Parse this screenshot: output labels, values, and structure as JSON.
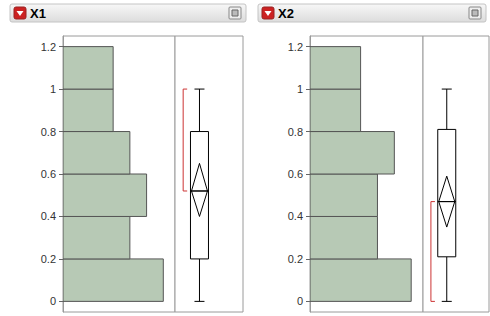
{
  "chart_data": [
    {
      "type": "histogram",
      "title": "X1",
      "orientation": "horizontal",
      "color": "#b7c9b5",
      "bins": [
        0,
        0.2,
        0.4,
        0.6,
        0.8,
        1.0,
        1.2
      ],
      "counts": [
        6,
        4,
        5,
        4,
        3,
        3
      ],
      "xlim": [
        0,
        6.7
      ],
      "ylim": [
        -0.05,
        1.25
      ],
      "yticks": [
        0,
        0.2,
        0.4,
        0.6,
        0.8,
        1,
        1.2
      ],
      "tick_labels": "y",
      "box": {
        "min": 0,
        "q1": 0.2,
        "median": 0.52,
        "q3": 0.8,
        "max": 1.0
      },
      "mean_diamond": {
        "lower": 0.4,
        "mean": 0.52,
        "upper": 0.65
      },
      "shortest_half": [
        0.52,
        1.0
      ]
    },
    {
      "type": "histogram",
      "title": "X2",
      "orientation": "horizontal",
      "color": "#b7c9b5",
      "bins": [
        0,
        0.2,
        0.4,
        0.6,
        0.8,
        1.0,
        1.2
      ],
      "counts": [
        6,
        4,
        4,
        5,
        3,
        3
      ],
      "xlim": [
        0,
        6.7
      ],
      "ylim": [
        -0.05,
        1.25
      ],
      "yticks": [
        0,
        0.2,
        0.4,
        0.6,
        0.8,
        1,
        1.2
      ],
      "tick_labels": "y",
      "box": {
        "min": 0,
        "q1": 0.21,
        "median": 0.47,
        "q3": 0.81,
        "max": 1.0
      },
      "mean_diamond": {
        "lower": 0.35,
        "mean": 0.47,
        "upper": 0.59
      },
      "shortest_half": [
        0,
        0.47
      ]
    }
  ]
}
